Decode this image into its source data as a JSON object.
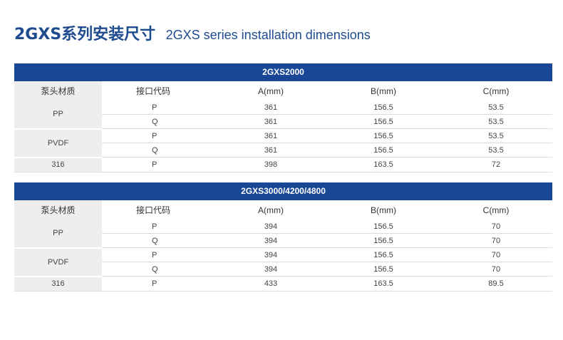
{
  "title": {
    "cn": "2GXS系列安装尺寸",
    "en": "2GXS series installation dimensions"
  },
  "headers": {
    "material": "泵头材质",
    "code": "接口代码",
    "a": "A(mm)",
    "b": "B(mm)",
    "c": "C(mm)"
  },
  "tables": [
    {
      "name": "2GXS2000",
      "groups": [
        {
          "material": "PP",
          "rows": [
            {
              "code": "P",
              "a": "361",
              "b": "156.5",
              "c": "53.5"
            },
            {
              "code": "Q",
              "a": "361",
              "b": "156.5",
              "c": "53.5"
            }
          ]
        },
        {
          "material": "PVDF",
          "rows": [
            {
              "code": "P",
              "a": "361",
              "b": "156.5",
              "c": "53.5"
            },
            {
              "code": "Q",
              "a": "361",
              "b": "156.5",
              "c": "53.5"
            }
          ]
        },
        {
          "material": "316",
          "rows": [
            {
              "code": "P",
              "a": "398",
              "b": "163.5",
              "c": "72"
            }
          ]
        }
      ]
    },
    {
      "name": "2GXS3000/4200/4800",
      "groups": [
        {
          "material": "PP",
          "rows": [
            {
              "code": "P",
              "a": "394",
              "b": "156.5",
              "c": "70"
            },
            {
              "code": "Q",
              "a": "394",
              "b": "156.5",
              "c": "70"
            }
          ]
        },
        {
          "material": "PVDF",
          "rows": [
            {
              "code": "P",
              "a": "394",
              "b": "156.5",
              "c": "70"
            },
            {
              "code": "Q",
              "a": "394",
              "b": "156.5",
              "c": "70"
            }
          ]
        },
        {
          "material": "316",
          "rows": [
            {
              "code": "P",
              "a": "433",
              "b": "163.5",
              "c": "89.5"
            }
          ]
        }
      ]
    }
  ]
}
